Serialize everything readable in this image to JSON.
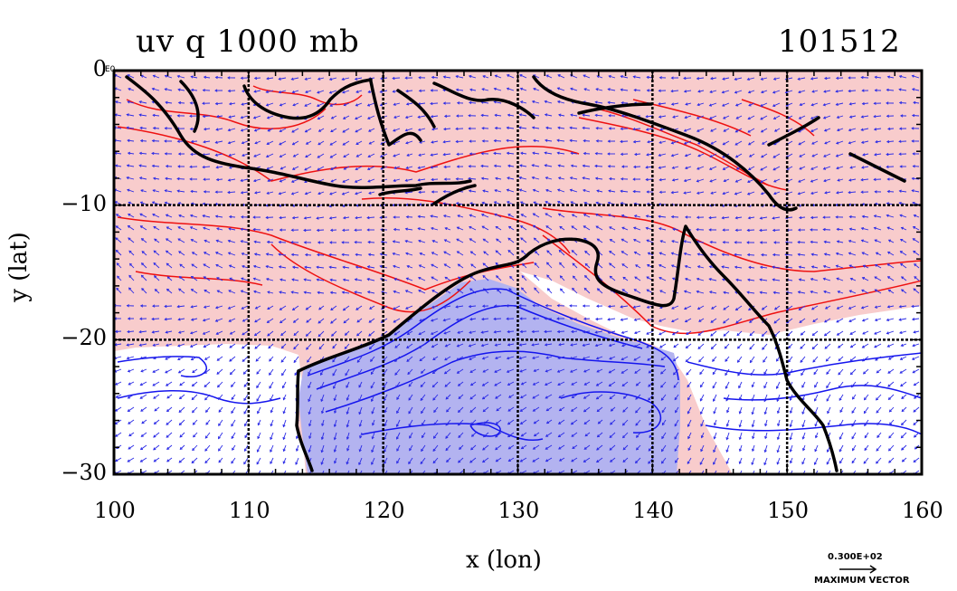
{
  "title_left": "uv  q  1000  mb",
  "title_right": "101512",
  "corner_label": "E0",
  "legend": {
    "magnitude_text": "0.300E+02",
    "caption": "MAXIMUM VECTOR"
  },
  "colors": {
    "positive_fill": "#f8cccc",
    "negative_fill": "#b3b3f0",
    "positive_contour": "#ee1111",
    "negative_contour": "#1515ee",
    "vector": "#2a2ae6",
    "coast": "#000000"
  },
  "chart_data": {
    "type": "map",
    "xlabel": "x  (lon)",
    "ylabel": "y  (lat)",
    "xlim": [
      100,
      160
    ],
    "ylim": [
      -30,
      0
    ],
    "x_ticks": [
      100,
      110,
      120,
      130,
      140,
      150,
      160
    ],
    "x_tick_labels": [
      "100",
      "110",
      "120",
      "130",
      "140",
      "150",
      "160"
    ],
    "y_ticks": [
      0,
      -10,
      -20,
      -30
    ],
    "y_tick_labels": [
      "0",
      "−10",
      "−20",
      "−30"
    ],
    "grid": true,
    "fields": [
      "wind vectors (uv)",
      "specific humidity anomaly contours (q)"
    ]
  }
}
